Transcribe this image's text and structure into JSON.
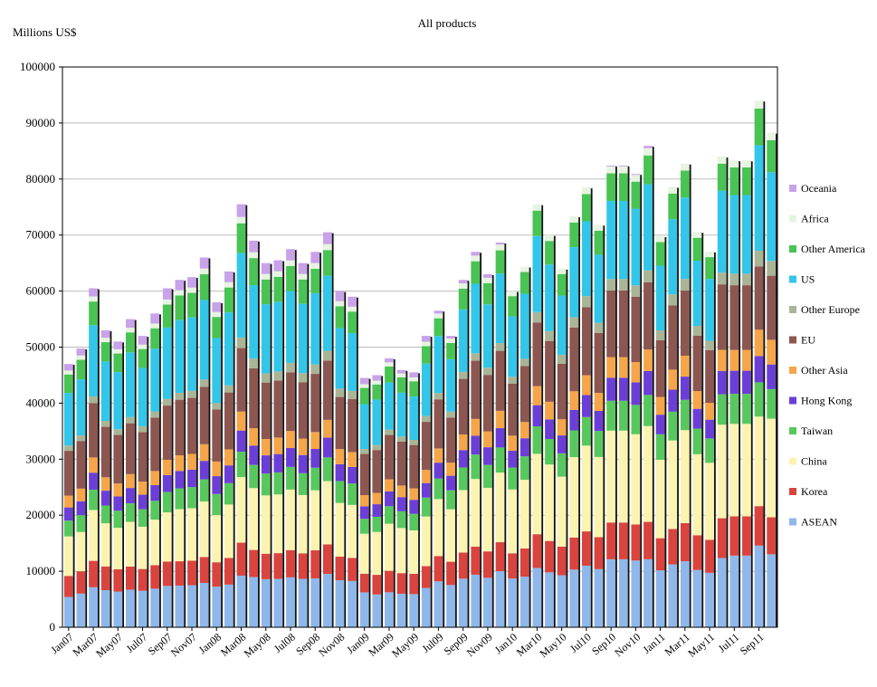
{
  "chart_data": {
    "type": "stacked-bar",
    "title": "All products",
    "ylabel": "Millions US$",
    "xlabel": "",
    "ylim": [
      0,
      100000
    ],
    "ytick_step": 10000,
    "ytick_labels": [
      "0",
      "10000",
      "20000",
      "30000",
      "40000",
      "50000",
      "60000",
      "70000",
      "80000",
      "90000",
      "100000"
    ],
    "x_tick_labels": [
      "Jan07",
      "Mar07",
      "May07",
      "Jul07",
      "Sep07",
      "Nov07",
      "Jan08",
      "Mar08",
      "May08",
      "Jul08",
      "Sep08",
      "Nov08",
      "Jan09",
      "Mar09",
      "May09",
      "Jul09",
      "Sep09",
      "Nov09",
      "Jan10",
      "Mar10",
      "May10",
      "Jul10",
      "Sep10",
      "Nov10",
      "Jan11",
      "Mar11",
      "May11",
      "Jul11",
      "Sep11"
    ],
    "categories": [
      "Jan07",
      "Feb07",
      "Mar07",
      "Apr07",
      "May07",
      "Jun07",
      "Jul07",
      "Aug07",
      "Sep07",
      "Oct07",
      "Nov07",
      "Dec07",
      "Jan08",
      "Feb08",
      "Mar08",
      "Apr08",
      "May08",
      "Jun08",
      "Jul08",
      "Aug08",
      "Sep08",
      "Oct08",
      "Nov08",
      "Dec08",
      "Jan09",
      "Feb09",
      "Mar09",
      "Apr09",
      "May09",
      "Jun09",
      "Jul09",
      "Aug09",
      "Sep09",
      "Oct09",
      "Nov09",
      "Dec09",
      "Jan10",
      "Feb10",
      "Mar10",
      "Apr10",
      "May10",
      "Jun10",
      "Jul10",
      "Aug10",
      "Sep10",
      "Oct10",
      "Nov10",
      "Dec10",
      "Jan11",
      "Feb11",
      "Mar11",
      "Apr11",
      "May11",
      "Jun11",
      "Jul11",
      "Aug11",
      "Sep11",
      "Oct11"
    ],
    "totals": [
      47000,
      50000,
      60500,
      53000,
      51000,
      55000,
      52000,
      56000,
      60500,
      62000,
      62500,
      66000,
      58000,
      63500,
      75500,
      69000,
      65000,
      65500,
      67500,
      65000,
      67000,
      70500,
      60000,
      59000,
      44500,
      45000,
      48000,
      46000,
      45500,
      52000,
      56500,
      52000,
      62000,
      67000,
      63000,
      69000,
      60000,
      64500,
      75500,
      70000,
      64000,
      73500,
      78500,
      71500,
      82000,
      82000,
      80500,
      85500,
      70000,
      79000,
      83000,
      70500,
      67000,
      83500,
      82500,
      82500,
      94000,
      88000
    ],
    "series": [
      {
        "name": "ASEAN",
        "color": "#8fb7ea",
        "shares": [
          0.115,
          0.12,
          0.118,
          0.125,
          0.125,
          0.122,
          0.125,
          0.123,
          0.122,
          0.12,
          0.12,
          0.12,
          0.125,
          0.12,
          0.122,
          0.13,
          0.132,
          0.132,
          0.132,
          0.133,
          0.13,
          0.135,
          0.14,
          0.14,
          0.14,
          0.13,
          0.13,
          0.13,
          0.13,
          0.135,
          0.145,
          0.145,
          0.14,
          0.14,
          0.14,
          0.145,
          0.145,
          0.14,
          0.14,
          0.14,
          0.145,
          0.14,
          0.14,
          0.145,
          0.148,
          0.148,
          0.148,
          0.142,
          0.145,
          0.142,
          0.142,
          0.145,
          0.145,
          0.148,
          0.155,
          0.155,
          0.155,
          0.148
        ]
      },
      {
        "name": "Korea",
        "color": "#d9443e",
        "shares": [
          0.08,
          0.08,
          0.078,
          0.08,
          0.078,
          0.075,
          0.075,
          0.075,
          0.072,
          0.07,
          0.07,
          0.07,
          0.075,
          0.075,
          0.078,
          0.07,
          0.07,
          0.07,
          0.072,
          0.07,
          0.075,
          0.075,
          0.07,
          0.07,
          0.075,
          0.078,
          0.08,
          0.08,
          0.08,
          0.075,
          0.08,
          0.08,
          0.075,
          0.075,
          0.075,
          0.075,
          0.075,
          0.078,
          0.08,
          0.08,
          0.08,
          0.078,
          0.078,
          0.08,
          0.08,
          0.08,
          0.08,
          0.078,
          0.082,
          0.08,
          0.082,
          0.088,
          0.088,
          0.085,
          0.085,
          0.085,
          0.075,
          0.075
        ]
      },
      {
        "name": "China",
        "color": "#fbf3b0",
        "shares": [
          0.15,
          0.14,
          0.15,
          0.145,
          0.145,
          0.145,
          0.145,
          0.145,
          0.145,
          0.15,
          0.15,
          0.15,
          0.145,
          0.15,
          0.155,
          0.16,
          0.16,
          0.16,
          0.16,
          0.16,
          0.16,
          0.16,
          0.16,
          0.16,
          0.16,
          0.17,
          0.175,
          0.175,
          0.17,
          0.17,
          0.18,
          0.18,
          0.18,
          0.18,
          0.18,
          0.18,
          0.19,
          0.19,
          0.19,
          0.195,
          0.195,
          0.195,
          0.195,
          0.2,
          0.2,
          0.2,
          0.2,
          0.2,
          0.2,
          0.2,
          0.2,
          0.205,
          0.205,
          0.2,
          0.2,
          0.2,
          0.17,
          0.2
        ]
      },
      {
        "name": "Taiwan",
        "color": "#58c85e",
        "shares": [
          0.06,
          0.06,
          0.06,
          0.06,
          0.06,
          0.06,
          0.06,
          0.06,
          0.06,
          0.06,
          0.06,
          0.06,
          0.065,
          0.06,
          0.06,
          0.06,
          0.06,
          0.06,
          0.06,
          0.06,
          0.06,
          0.06,
          0.065,
          0.065,
          0.06,
          0.06,
          0.065,
          0.065,
          0.065,
          0.065,
          0.065,
          0.065,
          0.065,
          0.065,
          0.065,
          0.065,
          0.065,
          0.065,
          0.065,
          0.065,
          0.065,
          0.065,
          0.065,
          0.065,
          0.065,
          0.065,
          0.065,
          0.065,
          0.065,
          0.065,
          0.065,
          0.065,
          0.065,
          0.065,
          0.065,
          0.065,
          0.065,
          0.06
        ]
      },
      {
        "name": "Hong Kong",
        "color": "#6b3fd6",
        "shares": [
          0.05,
          0.05,
          0.05,
          0.05,
          0.05,
          0.05,
          0.05,
          0.05,
          0.05,
          0.05,
          0.05,
          0.05,
          0.055,
          0.05,
          0.05,
          0.05,
          0.05,
          0.05,
          0.05,
          0.05,
          0.05,
          0.05,
          0.05,
          0.05,
          0.05,
          0.05,
          0.055,
          0.055,
          0.055,
          0.05,
          0.05,
          0.05,
          0.05,
          0.05,
          0.05,
          0.05,
          0.05,
          0.05,
          0.05,
          0.05,
          0.05,
          0.05,
          0.05,
          0.05,
          0.05,
          0.05,
          0.05,
          0.05,
          0.05,
          0.05,
          0.05,
          0.05,
          0.05,
          0.05,
          0.05,
          0.05,
          0.05,
          0.05
        ]
      },
      {
        "name": "Other Asia",
        "color": "#f5a54a",
        "shares": [
          0.045,
          0.045,
          0.045,
          0.045,
          0.045,
          0.045,
          0.045,
          0.045,
          0.045,
          0.045,
          0.045,
          0.045,
          0.045,
          0.045,
          0.045,
          0.045,
          0.045,
          0.045,
          0.045,
          0.045,
          0.045,
          0.045,
          0.045,
          0.045,
          0.045,
          0.045,
          0.045,
          0.045,
          0.045,
          0.045,
          0.045,
          0.045,
          0.045,
          0.045,
          0.045,
          0.045,
          0.045,
          0.045,
          0.045,
          0.045,
          0.045,
          0.045,
          0.045,
          0.045,
          0.045,
          0.045,
          0.045,
          0.045,
          0.045,
          0.045,
          0.045,
          0.045,
          0.045,
          0.045,
          0.045,
          0.045,
          0.05,
          0.05
        ]
      },
      {
        "name": "EU",
        "color": "#8c5651",
        "shares": [
          0.17,
          0.17,
          0.16,
          0.17,
          0.17,
          0.165,
          0.17,
          0.17,
          0.16,
          0.16,
          0.16,
          0.155,
          0.16,
          0.16,
          0.15,
          0.155,
          0.155,
          0.155,
          0.155,
          0.155,
          0.155,
          0.15,
          0.155,
          0.16,
          0.165,
          0.17,
          0.165,
          0.17,
          0.17,
          0.165,
          0.155,
          0.155,
          0.16,
          0.155,
          0.16,
          0.155,
          0.155,
          0.155,
          0.15,
          0.155,
          0.155,
          0.155,
          0.155,
          0.15,
          0.145,
          0.145,
          0.145,
          0.14,
          0.145,
          0.145,
          0.14,
          0.14,
          0.14,
          0.14,
          0.14,
          0.14,
          0.12,
          0.13
        ]
      },
      {
        "name": "Other Europe",
        "color": "#aab496",
        "shares": [
          0.02,
          0.02,
          0.02,
          0.02,
          0.02,
          0.02,
          0.02,
          0.02,
          0.02,
          0.02,
          0.02,
          0.02,
          0.02,
          0.02,
          0.025,
          0.025,
          0.025,
          0.025,
          0.025,
          0.025,
          0.025,
          0.025,
          0.025,
          0.025,
          0.02,
          0.02,
          0.02,
          0.02,
          0.02,
          0.02,
          0.02,
          0.02,
          0.02,
          0.02,
          0.02,
          0.02,
          0.02,
          0.02,
          0.025,
          0.025,
          0.025,
          0.025,
          0.025,
          0.025,
          0.025,
          0.025,
          0.025,
          0.025,
          0.025,
          0.025,
          0.025,
          0.025,
          0.025,
          0.025,
          0.025,
          0.025,
          0.03,
          0.03
        ]
      },
      {
        "name": "US",
        "color": "#33c6e8",
        "shares": [
          0.2,
          0.2,
          0.21,
          0.2,
          0.2,
          0.21,
          0.2,
          0.2,
          0.21,
          0.21,
          0.21,
          0.215,
          0.2,
          0.205,
          0.2,
          0.19,
          0.19,
          0.19,
          0.19,
          0.19,
          0.19,
          0.19,
          0.18,
          0.175,
          0.18,
          0.18,
          0.175,
          0.17,
          0.17,
          0.18,
          0.18,
          0.18,
          0.18,
          0.185,
          0.18,
          0.18,
          0.18,
          0.18,
          0.18,
          0.17,
          0.165,
          0.17,
          0.17,
          0.17,
          0.17,
          0.17,
          0.17,
          0.18,
          0.165,
          0.17,
          0.175,
          0.165,
          0.165,
          0.175,
          0.17,
          0.17,
          0.2,
          0.18
        ]
      },
      {
        "name": "Other America",
        "color": "#49c354",
        "shares": [
          0.07,
          0.07,
          0.07,
          0.065,
          0.065,
          0.065,
          0.065,
          0.065,
          0.068,
          0.07,
          0.07,
          0.07,
          0.065,
          0.07,
          0.07,
          0.07,
          0.068,
          0.068,
          0.066,
          0.067,
          0.065,
          0.065,
          0.065,
          0.065,
          0.065,
          0.06,
          0.06,
          0.06,
          0.06,
          0.06,
          0.056,
          0.056,
          0.06,
          0.06,
          0.06,
          0.06,
          0.06,
          0.06,
          0.06,
          0.06,
          0.06,
          0.06,
          0.062,
          0.06,
          0.06,
          0.06,
          0.06,
          0.06,
          0.06,
          0.058,
          0.058,
          0.058,
          0.058,
          0.058,
          0.06,
          0.06,
          0.07,
          0.065
        ]
      },
      {
        "name": "Africa",
        "color": "#e6f4e1",
        "shares": [
          0.015,
          0.015,
          0.015,
          0.015,
          0.015,
          0.015,
          0.015,
          0.015,
          0.015,
          0.015,
          0.015,
          0.015,
          0.015,
          0.015,
          0.015,
          0.015,
          0.015,
          0.015,
          0.015,
          0.015,
          0.015,
          0.015,
          0.015,
          0.015,
          0.015,
          0.015,
          0.015,
          0.015,
          0.015,
          0.015,
          0.015,
          0.015,
          0.015,
          0.015,
          0.015,
          0.015,
          0.015,
          0.015,
          0.015,
          0.015,
          0.015,
          0.015,
          0.015,
          0.015,
          0.015,
          0.015,
          0.015,
          0.015,
          0.015,
          0.015,
          0.015,
          0.015,
          0.015,
          0.015,
          0.015,
          0.015,
          0.015,
          0.015
        ]
      },
      {
        "name": "Oceania",
        "color": "#c8a3e8",
        "shares": [
          0.025,
          0.025,
          0.024,
          0.025,
          0.027,
          0.028,
          0.03,
          0.032,
          0.033,
          0.03,
          0.03,
          0.03,
          0.03,
          0.03,
          0.03,
          0.03,
          0.03,
          0.03,
          0.03,
          0.03,
          0.03,
          0.03,
          0.03,
          0.03,
          0.025,
          0.022,
          0.015,
          0.013,
          0.02,
          0.02,
          0.009,
          0.009,
          0.01,
          0.01,
          0.01,
          0.005,
          0.0,
          0.0,
          0.0,
          0.0,
          0.0,
          0.0,
          0.0,
          0.0,
          0.002,
          0.002,
          0.002,
          0.005,
          0.0,
          0.0,
          0.0,
          0.0,
          0.0,
          0.0,
          0.0,
          0.0,
          0.0,
          0.0
        ]
      }
    ],
    "legend": {
      "position": "right",
      "order": [
        "Oceania",
        "Africa",
        "Other America",
        "US",
        "Other Europe",
        "EU",
        "Other Asia",
        "Hong Kong",
        "Taiwan",
        "China",
        "Korea",
        "ASEAN"
      ]
    }
  }
}
